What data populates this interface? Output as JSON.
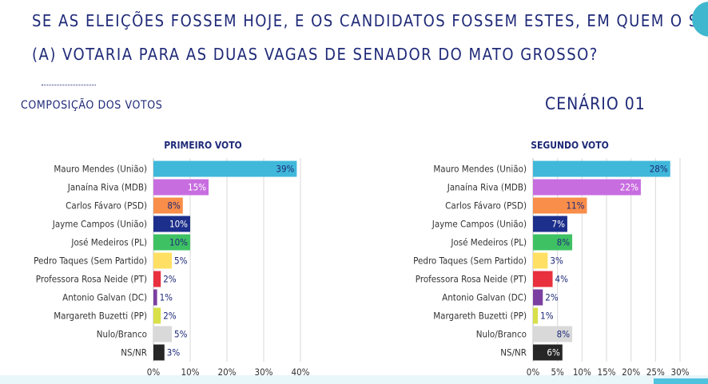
{
  "header": {
    "title_line1": "SE AS ELEIÇÕES FOSSEM HOJE, E OS CANDIDATOS FOSSEM ESTES, EM QUEM O SR.",
    "title_line2": "(A) VOTARIA PARA AS DUAS VAGAS DE SENADOR DO MATO GROSSO?",
    "subtitle": "COMPOSIÇÃO DOS VOTOS",
    "scenario": "CENÁRIO 01"
  },
  "colors": {
    "title": "#1f2a78",
    "grid": "#d9d9d9",
    "axis": "#bfbfbf"
  },
  "chart_data": [
    {
      "type": "bar",
      "orientation": "horizontal",
      "title": "PRIMEIRO VOTO",
      "categories": [
        "Mauro Mendes (União)",
        "Janaína Riva (MDB)",
        "Carlos Fávaro (PSD)",
        "Jayme Campos (União)",
        "José Medeiros (PL)",
        "Pedro Taques (Sem Partido)",
        "Professora Rosa Neide (PT)",
        "Antonio Galvan (DC)",
        "Margareth Buzetti (PP)",
        "Nulo/Branco",
        "NS/NR"
      ],
      "values": [
        39,
        15,
        8,
        10,
        10,
        5,
        2,
        1,
        2,
        5,
        3
      ],
      "labels": [
        "39%",
        "15%",
        "8%",
        "10%",
        "10%",
        "5%",
        "2%",
        "1%",
        "2%",
        "5%",
        "3%"
      ],
      "colors": [
        "#3fb8d9",
        "#c86de0",
        "#f98d4a",
        "#1d2f8c",
        "#3ec163",
        "#ffe064",
        "#e8303f",
        "#7a3fa0",
        "#d8e04a",
        "#d9d9d9",
        "#262626"
      ],
      "label_colors": [
        "#1f2a78",
        "#ffffff",
        "#1f2a78",
        "#ffffff",
        "#1f2a78",
        "#1f2a78",
        "#1f2a78",
        "#1f2a78",
        "#1f2a78",
        "#1f2a78",
        "#1f2a78"
      ],
      "label_position": [
        "inside",
        "inside",
        "inside",
        "inside",
        "inside",
        "outside",
        "outside",
        "outside",
        "outside",
        "outside",
        "outside"
      ],
      "xlim": [
        0,
        40
      ],
      "xticks": [
        0,
        10,
        20,
        30,
        40
      ],
      "xtick_labels": [
        "0%",
        "10%",
        "20%",
        "30%",
        "40%"
      ],
      "grid": true
    },
    {
      "type": "bar",
      "orientation": "horizontal",
      "title": "SEGUNDO VOTO",
      "categories": [
        "Mauro Mendes (União)",
        "Janaína Riva (MDB)",
        "Carlos Fávaro (PSD)",
        "Jayme Campos (União)",
        "José Medeiros (PL)",
        "Pedro Taques (Sem Partido)",
        "Professora Rosa Neide (PT)",
        "Antonio Galvan (DC)",
        "Margareth Buzetti (PP)",
        "Nulo/Branco",
        "NS/NR"
      ],
      "values": [
        28,
        22,
        11,
        7,
        8,
        3,
        4,
        2,
        1,
        8,
        6
      ],
      "labels": [
        "28%",
        "22%",
        "11%",
        "7%",
        "8%",
        "3%",
        "4%",
        "2%",
        "1%",
        "8%",
        "6%"
      ],
      "colors": [
        "#3fb8d9",
        "#c86de0",
        "#f98d4a",
        "#1d2f8c",
        "#3ec163",
        "#ffe064",
        "#e8303f",
        "#7a3fa0",
        "#d8e04a",
        "#d9d9d9",
        "#262626"
      ],
      "label_colors": [
        "#1f2a78",
        "#ffffff",
        "#1f2a78",
        "#ffffff",
        "#1f2a78",
        "#1f2a78",
        "#1f2a78",
        "#1f2a78",
        "#1f2a78",
        "#1f2a78",
        "#ffffff"
      ],
      "label_position": [
        "inside",
        "inside",
        "inside",
        "inside",
        "inside",
        "outside",
        "outside",
        "outside",
        "outside",
        "inside",
        "inside"
      ],
      "xlim": [
        0,
        30
      ],
      "xticks": [
        0,
        5,
        10,
        15,
        20,
        25,
        30
      ],
      "xtick_labels": [
        "0%",
        "5%",
        "10%",
        "15%",
        "20%",
        "25%",
        "30%"
      ],
      "grid": true
    }
  ]
}
